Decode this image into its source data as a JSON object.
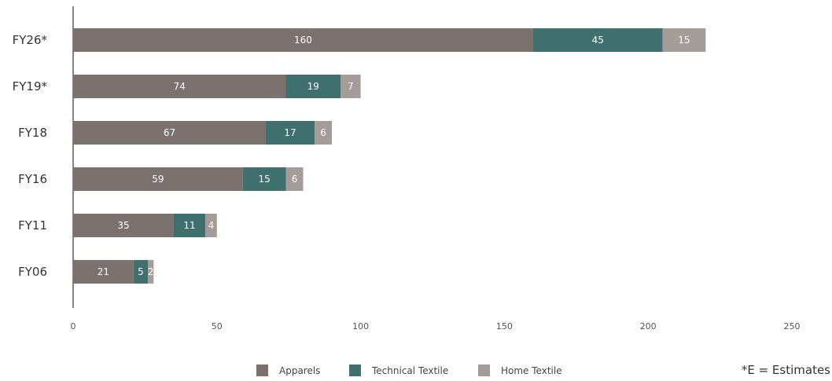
{
  "chart_data": {
    "type": "bar",
    "orientation": "horizontal",
    "stacked": true,
    "categories": [
      "FY26*",
      "FY19*",
      "FY18",
      "FY16",
      "FY11",
      "FY06"
    ],
    "series": [
      {
        "name": "Apparels",
        "values": [
          160,
          74,
          67,
          59,
          35,
          21
        ],
        "color": "#7b716e"
      },
      {
        "name": "Technical Textile",
        "values": [
          45,
          19,
          17,
          15,
          11,
          5
        ],
        "color": "#3f706d"
      },
      {
        "name": "Home Textile",
        "values": [
          15,
          7,
          6,
          6,
          4,
          2
        ],
        "color": "#a49c99"
      }
    ],
    "xlim": [
      0,
      250
    ],
    "xticks": [
      "0",
      "50",
      "100",
      "150",
      "200",
      "250"
    ],
    "title": "",
    "xlabel": "",
    "ylabel": "",
    "grid": false,
    "legend_position": "bottom",
    "note": "*E = Estimates"
  }
}
